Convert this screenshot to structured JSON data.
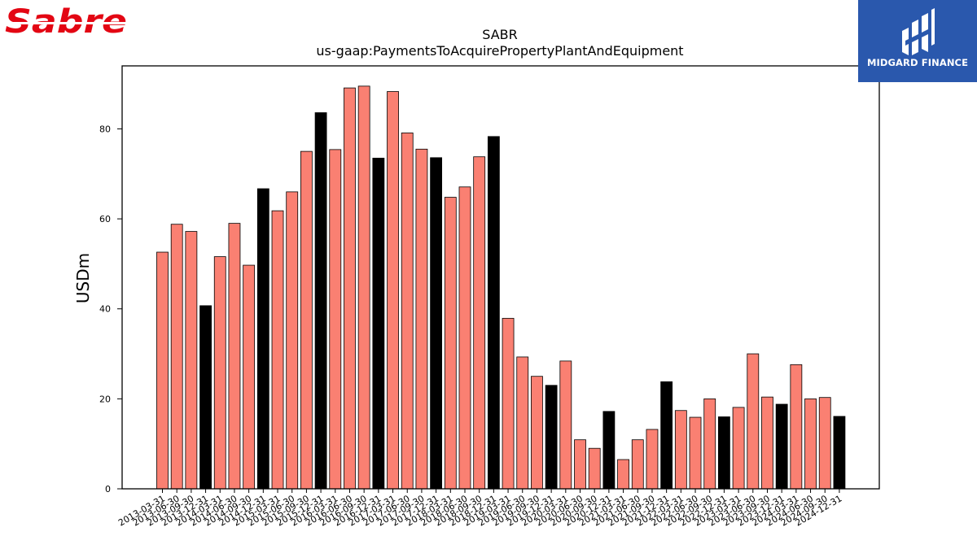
{
  "logos": {
    "left_text": "Sabre",
    "right_text": "MIDGARD FINANCE",
    "left_color": "#e30613",
    "right_bg": "#2a58ad"
  },
  "chart_data": {
    "type": "bar",
    "title": "SABR",
    "subtitle": "us-gaap:PaymentsToAcquirePropertyPlantAndEquipment",
    "ylabel": "USDm",
    "xlabel": "",
    "ylim": [
      0,
      94
    ],
    "yticks": [
      0,
      20,
      40,
      60,
      80
    ],
    "grid": false,
    "colors": {
      "quarter": "#fa8072",
      "year_end": "#000000"
    },
    "categories": [
      "2013-03-31",
      "2013-06-30",
      "2013-09-30",
      "2013-12-31",
      "2014-03-31",
      "2014-06-30",
      "2014-09-30",
      "2014-12-31",
      "2015-03-31",
      "2015-06-30",
      "2015-09-30",
      "2015-12-31",
      "2016-03-31",
      "2016-06-30",
      "2016-09-30",
      "2016-12-31",
      "2017-03-31",
      "2017-06-30",
      "2017-09-30",
      "2017-12-31",
      "2018-03-31",
      "2018-06-30",
      "2018-09-30",
      "2018-12-31",
      "2019-03-31",
      "2019-06-30",
      "2019-09-30",
      "2019-12-31",
      "2020-03-31",
      "2020-06-30",
      "2020-09-30",
      "2020-12-31",
      "2021-03-31",
      "2021-06-30",
      "2021-09-30",
      "2021-12-31",
      "2022-03-31",
      "2022-06-30",
      "2022-09-30",
      "2022-12-31",
      "2023-03-31",
      "2023-06-30",
      "2023-09-30",
      "2023-12-31",
      "2024-03-31",
      "2024-06-30",
      "2024-09-30",
      "2024-12-31"
    ],
    "values": [
      52.6,
      58.8,
      57.2,
      40.7,
      51.6,
      59.0,
      49.7,
      66.7,
      61.8,
      66.0,
      75.0,
      83.6,
      75.4,
      89.1,
      89.5,
      73.5,
      88.3,
      79.1,
      75.5,
      73.6,
      64.8,
      67.1,
      73.8,
      78.3,
      37.9,
      29.3,
      25.0,
      23.0,
      28.4,
      10.9,
      9.0,
      17.2,
      6.5,
      10.9,
      13.2,
      23.8,
      17.4,
      15.9,
      20.0,
      16.0,
      18.1,
      30.0,
      20.4,
      18.8,
      27.6,
      20.0,
      20.3,
      16.1
    ],
    "year_end": [
      false,
      false,
      false,
      true,
      false,
      false,
      false,
      true,
      false,
      false,
      false,
      true,
      false,
      false,
      false,
      true,
      false,
      false,
      false,
      true,
      false,
      false,
      false,
      true,
      false,
      false,
      false,
      true,
      false,
      false,
      false,
      true,
      false,
      false,
      false,
      true,
      false,
      false,
      false,
      true,
      false,
      false,
      false,
      true,
      false,
      false,
      false,
      true
    ]
  }
}
